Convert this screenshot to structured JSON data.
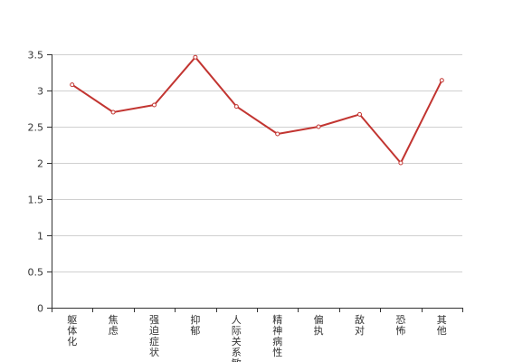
{
  "chart_data": {
    "type": "line",
    "title": "",
    "xlabel": "",
    "ylabel": "",
    "categories": [
      "躯体化",
      "焦虑",
      "强迫症状",
      "抑郁",
      "人际关系敏感",
      "精神病性",
      "偏执",
      "敌对",
      "恐怖",
      "其他"
    ],
    "series": [
      {
        "values": [
          3.08,
          2.7,
          2.8,
          3.46,
          2.78,
          2.4,
          2.5,
          2.67,
          2.0,
          3.14
        ],
        "color": "#c23531"
      }
    ],
    "ylim": [
      0,
      3.5
    ],
    "yticks": [
      "0",
      "0.5",
      "1",
      "1.5",
      "2",
      "2.5",
      "3",
      "3.5"
    ],
    "grid": true,
    "legend": "none"
  }
}
